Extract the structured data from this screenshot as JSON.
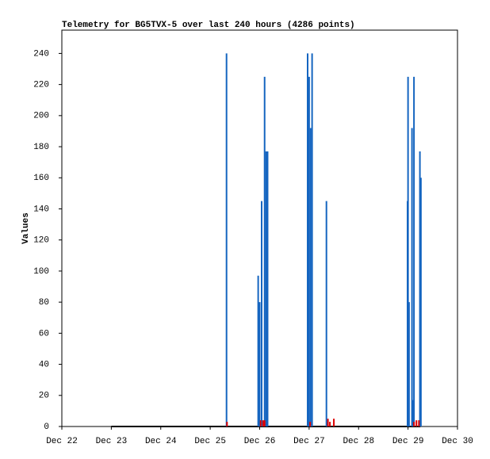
{
  "chart_data": {
    "type": "line",
    "title": "Telemetry for BG5TVX-5 over last 240 hours (4286 points)",
    "ylabel": "Values",
    "xlim": [
      22,
      30
    ],
    "xticks": [
      {
        "value": 22,
        "label": "Dec 22"
      },
      {
        "value": 23,
        "label": "Dec 23"
      },
      {
        "value": 24,
        "label": "Dec 24"
      },
      {
        "value": 25,
        "label": "Dec 25"
      },
      {
        "value": 26,
        "label": "Dec 26"
      },
      {
        "value": 27,
        "label": "Dec 27"
      },
      {
        "value": 28,
        "label": "Dec 28"
      },
      {
        "value": 29,
        "label": "Dec 29"
      },
      {
        "value": 30,
        "label": "Dec 30"
      }
    ],
    "ylim": [
      0,
      255
    ],
    "yticks": [
      0,
      20,
      40,
      60,
      80,
      100,
      120,
      140,
      160,
      180,
      200,
      220,
      240
    ],
    "series": [
      {
        "color": "#000000",
        "style": "line",
        "x": [
          23,
          29.25
        ],
        "values": [
          0,
          0
        ]
      },
      {
        "color": "#1565c0",
        "style": "impulse",
        "x": [
          25.33,
          25.97,
          26.0,
          26.04,
          26.1,
          26.13,
          26.16,
          26.97,
          27.0,
          27.03,
          27.06,
          27.35,
          28.99,
          29.0,
          29.02,
          29.08,
          29.1,
          29.12,
          29.24,
          29.26
        ],
        "values": [
          240,
          97,
          80,
          145,
          225,
          177,
          177,
          240,
          225,
          192,
          240,
          145,
          145,
          225,
          80,
          192,
          17,
          225,
          177,
          160
        ]
      },
      {
        "color": "#dd0000",
        "style": "impulse",
        "x": [
          25.34,
          26.02,
          26.07,
          26.1,
          27.02,
          27.38,
          27.42,
          27.5,
          29.12,
          29.17,
          29.22
        ],
        "values": [
          3,
          4,
          4,
          4,
          3,
          5,
          3,
          5,
          3,
          4,
          4
        ]
      }
    ]
  }
}
